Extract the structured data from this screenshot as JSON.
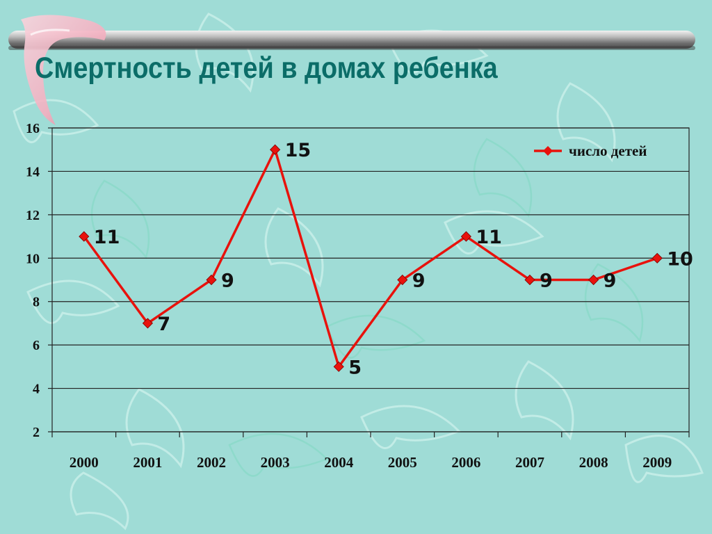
{
  "slide": {
    "title": "Смертность детей в домах ребенка"
  },
  "colors": {
    "background": "#9fdcd6",
    "title": "#0b6d68",
    "series_line": "#e8120c",
    "marker": "#e8120c",
    "gridline": "#222222"
  },
  "chart_data": {
    "type": "line",
    "title": "",
    "xlabel": "",
    "ylabel": "",
    "categories": [
      "2000",
      "2001",
      "2002",
      "2003",
      "2004",
      "2005",
      "2006",
      "2007",
      "2008",
      "2009"
    ],
    "series": [
      {
        "name": "число детей",
        "values": [
          11,
          7,
          9,
          15,
          5,
          9,
          11,
          9,
          9,
          10
        ],
        "color": "#e8120c",
        "marker": "diamond"
      }
    ],
    "ylim": [
      2,
      16
    ],
    "yticks": [
      2,
      4,
      6,
      8,
      10,
      12,
      14,
      16
    ],
    "grid": true,
    "legend": "top-right",
    "data_labels": true
  }
}
